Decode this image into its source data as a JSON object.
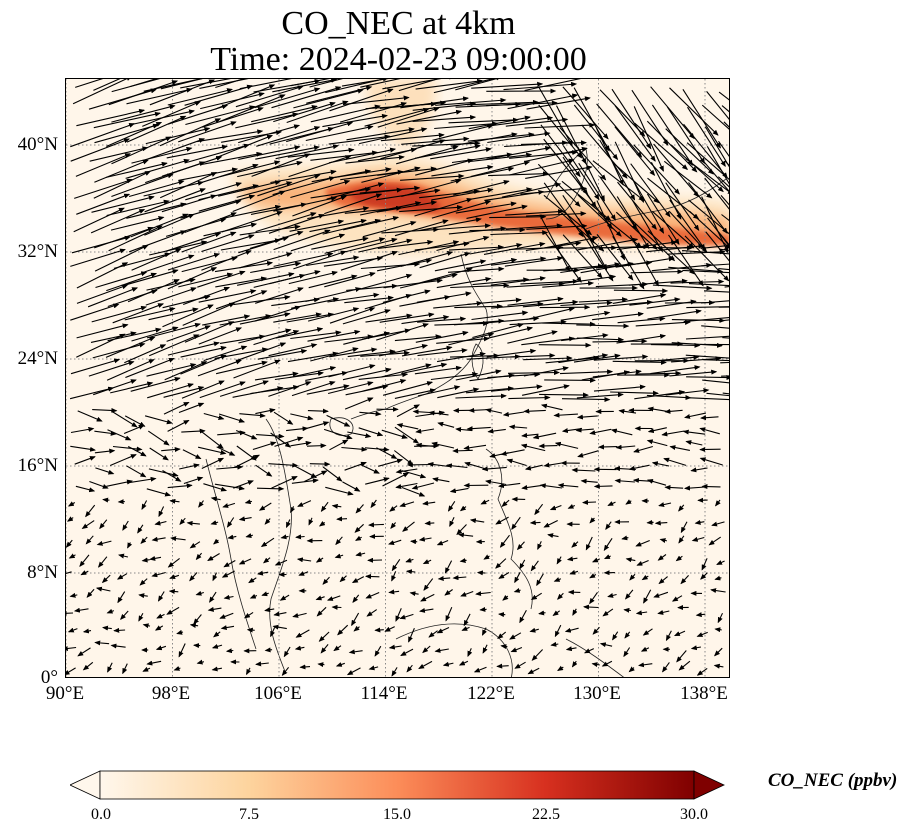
{
  "title": {
    "line1": "CO_NEC at 4km",
    "line2": "Time: 2024-02-23 09:00:00"
  },
  "map": {
    "lat_labels": [
      "40°N",
      "32°N",
      "24°N",
      "16°N",
      "8°N",
      "0°"
    ],
    "lon_labels": [
      "90°E",
      "98°E",
      "106°E",
      "114°E",
      "122°E",
      "130°E",
      "138°E"
    ],
    "lat_range": [
      0,
      45
    ],
    "lon_range": [
      90,
      140
    ],
    "gridlines": "dotted",
    "field": "CO_NEC concentration (ppbv) with wind vector arrows",
    "plume": "high CO band from ~102°E to 140°E near 33–38°N"
  },
  "colorbar": {
    "label": "CO_NEC (ppbv)",
    "ticks": [
      "0.0",
      "7.5",
      "15.0",
      "22.5",
      "30.0"
    ],
    "range": [
      0,
      30
    ],
    "colormap": "OrRd",
    "extend": "both"
  },
  "colors": {
    "background": "#fff6ea",
    "plume_low": "#fdd5a7",
    "plume_mid": "#f28e52",
    "plume_high": "#d94425",
    "arrow": "#000000",
    "grid": "#888888"
  }
}
